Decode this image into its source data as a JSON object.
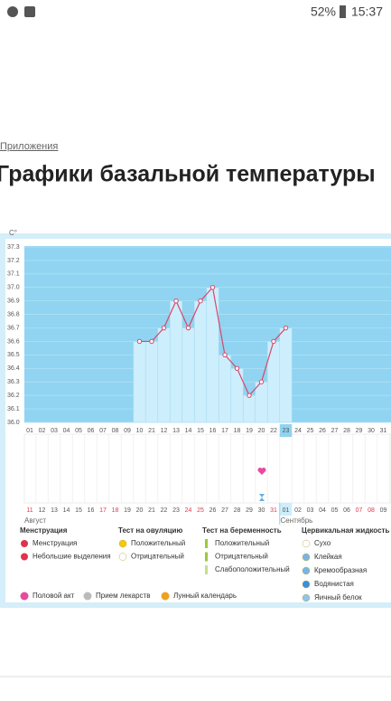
{
  "status": {
    "battery": "52%",
    "time": "15:37"
  },
  "breadcrumb": "Приложения",
  "title": "Графики базальной температуры",
  "chart_data": {
    "type": "line",
    "unit": "C°",
    "categories": [
      "01",
      "02",
      "03",
      "04",
      "05",
      "06",
      "07",
      "08",
      "09",
      "10",
      "21",
      "12",
      "13",
      "14",
      "15",
      "16",
      "17",
      "18",
      "19",
      "20",
      "22",
      "23",
      "24",
      "25",
      "26",
      "27",
      "28",
      "29",
      "30",
      "31"
    ],
    "dates": [
      "11",
      "12",
      "13",
      "14",
      "15",
      "16",
      "17",
      "18",
      "19",
      "20",
      "21",
      "22",
      "23",
      "24",
      "25",
      "26",
      "27",
      "28",
      "29",
      "30",
      "31",
      "01",
      "02",
      "03",
      "04",
      "05",
      "06",
      "07",
      "08",
      "09"
    ],
    "date_colors": [
      "#e53950",
      "#555",
      "#555",
      "#555",
      "#555",
      "#555",
      "#e53950",
      "#e53950",
      "#555",
      "#555",
      "#555",
      "#555",
      "#555",
      "#e53950",
      "#e53950",
      "#555",
      "#555",
      "#555",
      "#555",
      "#555",
      "#e53950",
      "#555",
      "#555",
      "#555",
      "#555",
      "#555",
      "#555",
      "#e53950",
      "#e53950",
      "#555"
    ],
    "months": [
      "Август",
      "Сентябрь"
    ],
    "series": [
      {
        "color": "#d9476b",
        "values": [
          null,
          null,
          null,
          null,
          null,
          null,
          null,
          null,
          null,
          36.6,
          36.6,
          36.7,
          36.9,
          36.7,
          36.9,
          37.0,
          36.5,
          36.4,
          36.2,
          36.3,
          36.6,
          36.7,
          null,
          null,
          null,
          null,
          null,
          null,
          null,
          null
        ]
      }
    ],
    "ylim": [
      36.0,
      37.3
    ],
    "yticks": [
      {
        "value": 36.0,
        "label": "36.0"
      },
      36.1,
      36.2,
      36.3,
      36.4,
      36.5,
      36.6,
      36.7,
      36.8,
      36.9,
      {
        "value": 37.0,
        "label": "37.0"
      },
      37.1,
      37.2,
      37.3
    ],
    "grid": true
  },
  "legend": {
    "groups": [
      {
        "title": "Менструация",
        "items": [
          "Менструация",
          "Небольшие выделения"
        ]
      },
      {
        "title": "Тест на овуляцию",
        "items": [
          "Положительный",
          "Отрицательный"
        ]
      },
      {
        "title": "Тест на беременность",
        "items": [
          "Положительный",
          "Отрицательный",
          "Слабоположительный"
        ]
      },
      {
        "title": "Цервикальная жидкость",
        "items": [
          "Сухо",
          "Клейкая",
          "Кремообразная",
          "Водянистая",
          "Яичный белок"
        ]
      }
    ],
    "extra": [
      "Половой акт",
      "Прием лекарств",
      "Лунный календарь"
    ]
  }
}
